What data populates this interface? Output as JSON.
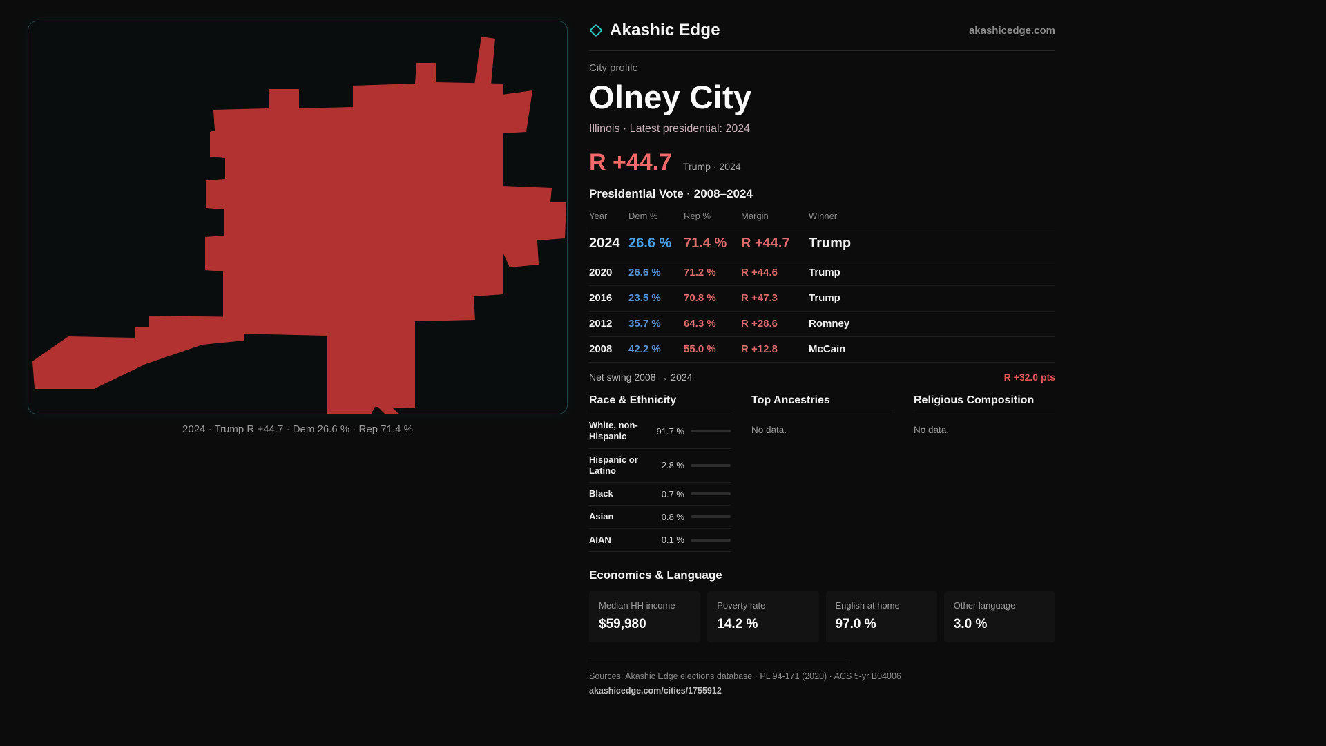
{
  "colors": {
    "accent_teal": "#2fc0c0",
    "dem_blue": "#5490d6",
    "rep_red": "#dc6b6b",
    "margin_red": "#f06a6a",
    "map_red": "#b23232",
    "panel_border": "#1e4449"
  },
  "header": {
    "brand": "Akashic Edge",
    "site": "akashicedge.com"
  },
  "map": {
    "caption": "2024 · Trump R +44.7 · Dem 26.6 % · Rep 71.4 %"
  },
  "profile": {
    "kicker": "City profile",
    "title": "Olney City",
    "subtitle": "Illinois · Latest presidential: 2024",
    "margin_big": "R +44.7",
    "margin_note": "Trump · 2024"
  },
  "vote_table": {
    "title": "Presidential Vote · 2008–2024",
    "headers": [
      "Year",
      "Dem %",
      "Rep %",
      "Margin",
      "Winner"
    ],
    "rows": [
      {
        "year": "2024",
        "dem": "26.6 %",
        "rep": "71.4 %",
        "margin": "R +44.7",
        "winner": "Trump"
      },
      {
        "year": "2020",
        "dem": "26.6 %",
        "rep": "71.2 %",
        "margin": "R +44.6",
        "winner": "Trump"
      },
      {
        "year": "2016",
        "dem": "23.5 %",
        "rep": "70.8 %",
        "margin": "R +47.3",
        "winner": "Trump"
      },
      {
        "year": "2012",
        "dem": "35.7 %",
        "rep": "64.3 %",
        "margin": "R +28.6",
        "winner": "Romney"
      },
      {
        "year": "2008",
        "dem": "42.2 %",
        "rep": "55.0 %",
        "margin": "R +12.8",
        "winner": "McCain"
      }
    ],
    "net_swing_label": "Net swing 2008 → 2024",
    "net_swing_value": "R +32.0 pts"
  },
  "demographics": {
    "race": {
      "title": "Race & Ethnicity",
      "rows": [
        {
          "label": "White, non-Hispanic",
          "value": "91.7 %",
          "pct": 91.7,
          "bar_color": "#96a0ce"
        },
        {
          "label": "Hispanic or Latino",
          "value": "2.8 %",
          "pct": 2.8,
          "bar_color": "#d9972f"
        },
        {
          "label": "Black",
          "value": "0.7 %",
          "pct": 0.7,
          "bar_color": "#bbbbbb"
        },
        {
          "label": "Asian",
          "value": "0.8 %",
          "pct": 0.8,
          "bar_color": "#d97ba0"
        },
        {
          "label": "AIAN",
          "value": "0.1 %",
          "pct": 0.1,
          "bar_color": "#bbbbbb"
        }
      ]
    },
    "ancestries": {
      "title": "Top Ancestries",
      "empty": "No data."
    },
    "religion": {
      "title": "Religious Composition",
      "empty": "No data."
    }
  },
  "economics": {
    "title": "Economics & Language",
    "stats": [
      {
        "label": "Median HH income",
        "value": "$59,980"
      },
      {
        "label": "Poverty rate",
        "value": "14.2 %"
      },
      {
        "label": "English at home",
        "value": "97.0 %"
      },
      {
        "label": "Other language",
        "value": "3.0 %"
      }
    ]
  },
  "footer": {
    "sources": "Sources: Akashic Edge elections database · PL 94-171 (2020) · ACS 5-yr B04006",
    "link": "akashicedge.com/cities/1755912"
  }
}
